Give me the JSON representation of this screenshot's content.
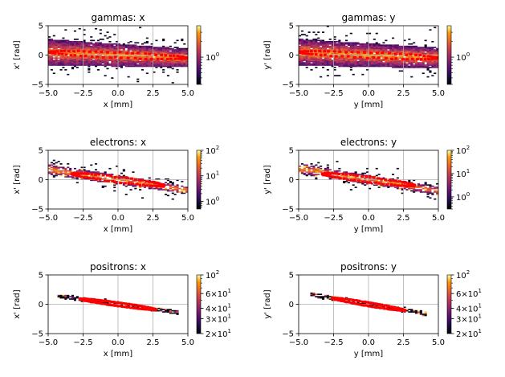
{
  "figure": {
    "title": "",
    "colormap": "inferno",
    "ellipse_color": "#ff0000"
  },
  "chart_data": [
    {
      "type": "heatmap",
      "id": "gammas-x",
      "title": "gammas: x",
      "xlabel": "x [mm]",
      "ylabel": "x' [rad]",
      "xlim": [
        -5,
        5
      ],
      "ylim": [
        -5,
        5
      ],
      "xticks": [
        "−5.0",
        "−2.5",
        "0.0",
        "2.5",
        "5.0"
      ],
      "xtick_values": [
        -5,
        -2.5,
        0,
        2.5,
        5
      ],
      "yticks": [
        "−5",
        "0",
        "5"
      ],
      "ytick_values": [
        -5,
        0,
        5
      ],
      "grid": true,
      "colorbar": {
        "scale": "log",
        "range": [
          0.3,
          4
        ],
        "ticks": [
          {
            "value": 1,
            "label": "10",
            "exp": "0"
          }
        ]
      },
      "distribution": {
        "slope": -0.1,
        "spread_left": 2.3,
        "spread_right": 1.6,
        "noise": 2.5,
        "extent": [
          -5,
          5
        ]
      },
      "ellipse": {
        "semi_x": 5.0,
        "semi_y": 0.45,
        "slope": -0.1,
        "style": "dots"
      }
    },
    {
      "type": "heatmap",
      "id": "gammas-y",
      "title": "gammas: y",
      "xlabel": "y [mm]",
      "ylabel": "y' [rad]",
      "xlim": [
        -5,
        5
      ],
      "ylim": [
        -5,
        5
      ],
      "xticks": [
        "−5.0",
        "−2.5",
        "0.0",
        "2.5",
        "5.0"
      ],
      "xtick_values": [
        -5,
        -2.5,
        0,
        2.5,
        5
      ],
      "yticks": [
        "−5",
        "0",
        "5"
      ],
      "ytick_values": [
        -5,
        0,
        5
      ],
      "grid": true,
      "colorbar": {
        "scale": "log",
        "range": [
          0.3,
          4
        ],
        "ticks": [
          {
            "value": 1,
            "label": "10",
            "exp": "0"
          }
        ]
      },
      "distribution": {
        "slope": -0.1,
        "spread_left": 2.3,
        "spread_right": 1.8,
        "noise": 2.5,
        "extent": [
          -5,
          5
        ]
      },
      "ellipse": {
        "semi_x": 5.0,
        "semi_y": 0.45,
        "slope": -0.1,
        "style": "dots"
      }
    },
    {
      "type": "heatmap",
      "id": "electrons-x",
      "title": "electrons: x",
      "xlabel": "x [mm]",
      "ylabel": "x' [rad]",
      "xlim": [
        -5,
        5
      ],
      "ylim": [
        -5,
        5
      ],
      "xticks": [
        "−5.0",
        "−2.5",
        "0.0",
        "2.5",
        "5.0"
      ],
      "xtick_values": [
        -5,
        -2.5,
        0,
        2.5,
        5
      ],
      "yticks": [
        "−5",
        "0",
        "5"
      ],
      "ytick_values": [
        -5,
        0,
        5
      ],
      "grid": true,
      "colorbar": {
        "scale": "log",
        "range": [
          0.5,
          100
        ],
        "ticks": [
          {
            "value": 1,
            "label": "10",
            "exp": "0"
          },
          {
            "value": 10,
            "label": "10",
            "exp": "1"
          },
          {
            "value": 100,
            "label": "10",
            "exp": "2"
          }
        ]
      },
      "distribution": {
        "slope": -0.35,
        "spread_left": 0.9,
        "spread_right": 0.7,
        "noise": 1.2,
        "extent": [
          -5,
          5
        ]
      },
      "ellipse": {
        "semi_x": 3.3,
        "semi_y": 0.45,
        "slope": -0.3,
        "style": "dots"
      }
    },
    {
      "type": "heatmap",
      "id": "electrons-y",
      "title": "electrons: y",
      "xlabel": "y [mm]",
      "ylabel": "y' [rad]",
      "xlim": [
        -5,
        5
      ],
      "ylim": [
        -5,
        5
      ],
      "xticks": [
        "−5.0",
        "−2.5",
        "0.0",
        "2.5",
        "5.0"
      ],
      "xtick_values": [
        -5,
        -2.5,
        0,
        2.5,
        5
      ],
      "yticks": [
        "−5",
        "0",
        "5"
      ],
      "ytick_values": [
        -5,
        0,
        5
      ],
      "grid": true,
      "colorbar": {
        "scale": "log",
        "range": [
          0.3,
          100
        ],
        "ticks": [
          {
            "value": 1,
            "label": "10",
            "exp": "0"
          },
          {
            "value": 10,
            "label": "10",
            "exp": "1"
          },
          {
            "value": 100,
            "label": "10",
            "exp": "2"
          }
        ]
      },
      "distribution": {
        "slope": -0.38,
        "spread_left": 0.9,
        "spread_right": 0.7,
        "noise": 1.2,
        "extent": [
          -5,
          5
        ]
      },
      "ellipse": {
        "semi_x": 3.3,
        "semi_y": 0.45,
        "slope": -0.3,
        "style": "dots"
      }
    },
    {
      "type": "heatmap",
      "id": "positrons-x",
      "title": "positrons: x",
      "xlabel": "x [mm]",
      "ylabel": "x' [rad]",
      "xlim": [
        -5,
        5
      ],
      "ylim": [
        -5,
        5
      ],
      "xticks": [
        "−5.0",
        "−2.5",
        "0.0",
        "2.5",
        "5.0"
      ],
      "xtick_values": [
        -5,
        -2.5,
        0,
        2.5,
        5
      ],
      "yticks": [
        "−5",
        "0",
        "5"
      ],
      "ytick_values": [
        -5,
        0,
        5
      ],
      "grid": true,
      "colorbar": {
        "scale": "log",
        "range": [
          20,
          100
        ],
        "ticks": [
          {
            "value": 20,
            "label": "2×10",
            "exp": "1"
          },
          {
            "value": 30,
            "label": "3×10",
            "exp": "1"
          },
          {
            "value": 40,
            "label": "4×10",
            "exp": "1"
          },
          {
            "value": 60,
            "label": "6×10",
            "exp": "1"
          },
          {
            "value": 100,
            "label": "10",
            "exp": "2"
          }
        ]
      },
      "distribution": {
        "slope": -0.33,
        "spread_left": 0.35,
        "spread_right": 0.35,
        "noise": 0.3,
        "extent": [
          -2.8,
          2.8
        ]
      },
      "ellipse": {
        "semi_x": 2.7,
        "semi_y": 0.3,
        "slope": -0.33,
        "style": "solid"
      }
    },
    {
      "type": "heatmap",
      "id": "positrons-y",
      "title": "positrons: y",
      "xlabel": "y [mm]",
      "ylabel": "y' [rad]",
      "xlim": [
        -5,
        5
      ],
      "ylim": [
        -5,
        5
      ],
      "xticks": [
        "−5.0",
        "−2.5",
        "0.0",
        "2.5",
        "5.0"
      ],
      "xtick_values": [
        -5,
        -2.5,
        0,
        2.5,
        5
      ],
      "yticks": [
        "−5",
        "0",
        "5"
      ],
      "ytick_values": [
        -5,
        0,
        5
      ],
      "grid": true,
      "colorbar": {
        "scale": "log",
        "range": [
          20,
          100
        ],
        "ticks": [
          {
            "value": 20,
            "label": "2×10",
            "exp": "1"
          },
          {
            "value": 30,
            "label": "3×10",
            "exp": "1"
          },
          {
            "value": 40,
            "label": "4×10",
            "exp": "1"
          },
          {
            "value": 60,
            "label": "6×10",
            "exp": "1"
          },
          {
            "value": 100,
            "label": "10",
            "exp": "2"
          }
        ]
      },
      "distribution": {
        "slope": -0.4,
        "spread_left": 0.35,
        "spread_right": 0.35,
        "noise": 0.3,
        "extent": [
          -2.7,
          2.7
        ]
      },
      "ellipse": {
        "semi_x": 2.6,
        "semi_y": 0.3,
        "slope": -0.4,
        "style": "solid"
      }
    }
  ]
}
